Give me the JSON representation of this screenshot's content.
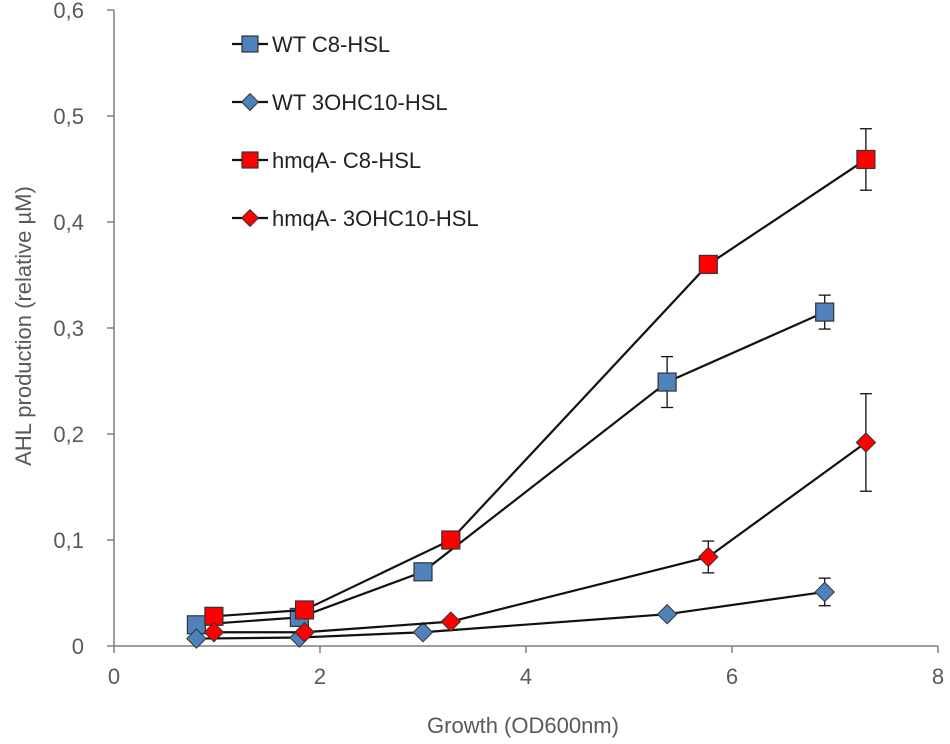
{
  "chart_data": {
    "type": "line",
    "title": "",
    "xlabel": "Growth (OD600nm)",
    "ylabel": "AHL production (relative µM)",
    "xlim": [
      0,
      8
    ],
    "ylim": [
      0,
      0.6
    ],
    "xticks": [
      0,
      2,
      4,
      6,
      8
    ],
    "yticks": [
      0,
      0.1,
      0.2,
      0.3,
      0.4,
      0.5,
      0.6
    ],
    "xtick_labels": [
      "0",
      "2",
      "4",
      "6",
      "8"
    ],
    "ytick_labels": [
      "0",
      "0,1",
      "0,2",
      "0,3",
      "0,4",
      "0,5",
      "0,6"
    ],
    "grid": false,
    "legend_position": "top-left",
    "series": [
      {
        "name": "WT C8-HSL",
        "marker": "square",
        "color": "#4f81bd",
        "x": [
          0.8,
          1.8,
          3.0,
          5.37,
          6.9
        ],
        "y": [
          0.02,
          0.027,
          0.07,
          0.249,
          0.315
        ],
        "error": [
          0,
          0,
          0,
          0.024,
          0.016
        ]
      },
      {
        "name": "WT 3OHC10-HSL",
        "marker": "diamond",
        "color": "#4f81bd",
        "x": [
          0.8,
          1.8,
          3.0,
          5.37,
          6.9
        ],
        "y": [
          0.007,
          0.008,
          0.013,
          0.03,
          0.051
        ],
        "error": [
          0,
          0,
          0,
          0,
          0.013
        ]
      },
      {
        "name": "hmqA- C8-HSL",
        "marker": "square",
        "color": "#ff0000",
        "x": [
          0.97,
          1.85,
          3.27,
          5.77,
          7.3
        ],
        "y": [
          0.028,
          0.034,
          0.1,
          0.36,
          0.459
        ],
        "error": [
          0,
          0,
          0,
          0,
          0.029
        ]
      },
      {
        "name": "hmqA- 3OHC10-HSL",
        "marker": "diamond",
        "color": "#ff0000",
        "x": [
          0.97,
          1.85,
          3.27,
          5.77,
          7.3
        ],
        "y": [
          0.013,
          0.013,
          0.023,
          0.084,
          0.192
        ],
        "error": [
          0,
          0,
          0,
          0.015,
          0.046
        ]
      }
    ]
  }
}
